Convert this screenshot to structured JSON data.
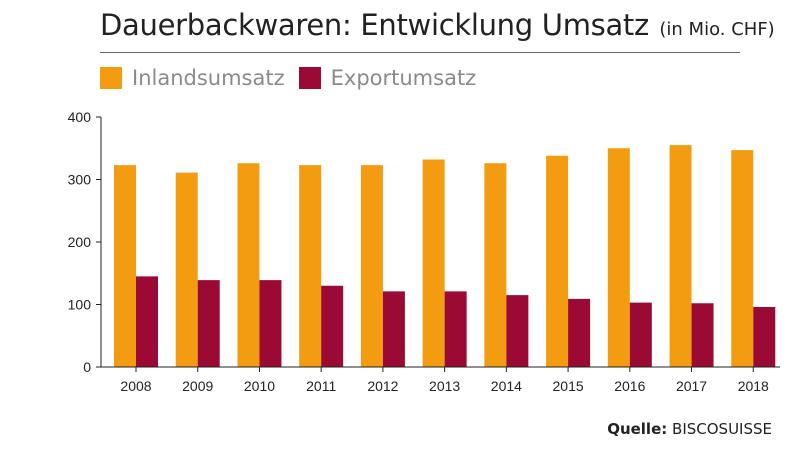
{
  "header": {
    "title": "Dauerbackwaren: Entwicklung Umsatz",
    "unit": "(in Mio. CHF)"
  },
  "source": {
    "key": "Quelle:",
    "value": "BISCOSUISSE"
  },
  "colors": {
    "inland": "#f39c12",
    "export": "#9b0a35",
    "axis": "#222222",
    "grid": "#bbbbbb"
  },
  "chart_data": {
    "type": "bar",
    "categories": [
      "2008",
      "2009",
      "2010",
      "2011",
      "2012",
      "2013",
      "2014",
      "2015",
      "2016",
      "2017",
      "2018"
    ],
    "series": [
      {
        "name": "Inlandsumsatz",
        "values": [
          323,
          311,
          326,
          323,
          323,
          332,
          326,
          338,
          350,
          355,
          347
        ]
      },
      {
        "name": "Exportumsatz",
        "values": [
          145,
          139,
          139,
          130,
          121,
          121,
          115,
          109,
          103,
          102,
          96
        ]
      }
    ],
    "ylim": [
      0,
      400
    ],
    "yticks": [
      "0",
      "100",
      "200",
      "300",
      "400"
    ],
    "grid": false,
    "legend_position": "top-left"
  }
}
